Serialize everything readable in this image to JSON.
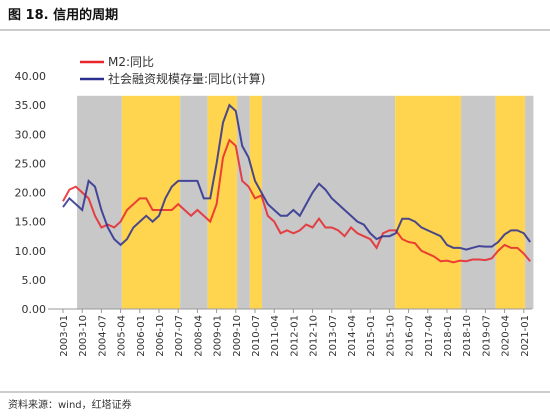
{
  "chart_data": {
    "type": "line",
    "title": "图 18. 信用的周期",
    "source": "资料来源：wind，红塔证券",
    "categories": [
      "2003-01",
      null,
      null,
      "2003-10",
      null,
      null,
      "2004-07",
      null,
      null,
      "2005-04",
      null,
      null,
      "2006-01",
      null,
      null,
      "2006-10",
      null,
      null,
      "2007-07",
      null,
      null,
      "2008-04",
      null,
      null,
      "2009-01",
      null,
      null,
      "2009-10",
      null,
      null,
      "2010-07",
      null,
      null,
      "2011-04",
      null,
      null,
      "2012-01",
      null,
      null,
      "2012-10",
      null,
      null,
      "2013-07",
      null,
      null,
      "2014-04",
      null,
      null,
      "2015-01",
      null,
      null,
      "2015-10",
      null,
      null,
      "2016-07",
      null,
      null,
      "2017-04",
      null,
      null,
      "2018-01",
      null,
      null,
      "2018-10",
      null,
      null,
      "2019-07",
      null,
      null,
      "2020-04",
      null,
      null,
      "2021-01",
      null
    ],
    "series": [
      {
        "name": "M2:同比",
        "color": "#e8262b",
        "values": [
          18.5,
          20.5,
          21,
          20,
          19,
          16,
          14,
          14.5,
          14,
          15,
          17,
          18,
          19,
          19,
          17,
          17,
          17,
          17,
          18,
          17,
          16,
          17,
          16,
          15,
          18,
          26,
          29,
          28,
          22,
          21,
          19,
          19.5,
          16,
          15,
          13,
          13.5,
          13,
          13.5,
          14.5,
          14,
          15.5,
          14,
          14,
          13.5,
          12.5,
          14,
          13,
          12.5,
          12,
          10.5,
          13,
          13.5,
          13.5,
          12,
          11.5,
          11.3,
          10,
          9.5,
          9,
          8.2,
          8.3,
          8,
          8.3,
          8.2,
          8.5,
          8.5,
          8.4,
          8.7,
          10,
          11,
          10.5,
          10.5,
          9.5,
          8.2
        ]
      },
      {
        "name": "社会融资规模存量:同比(计算)",
        "color": "#2b2f8f",
        "values": [
          17.5,
          19,
          18,
          17,
          22,
          21,
          17,
          14,
          12,
          11,
          12,
          14,
          15,
          16,
          15,
          16,
          19,
          21,
          22,
          22,
          22,
          22,
          19,
          19,
          25,
          32,
          35,
          34,
          28,
          26,
          22,
          20,
          18,
          17,
          16,
          16,
          17,
          16,
          18,
          20,
          21.5,
          20.5,
          19,
          18,
          17,
          16,
          15,
          14.5,
          13,
          12,
          12.5,
          12.5,
          13,
          15.5,
          15.5,
          15,
          14,
          13.5,
          13,
          12.5,
          11,
          10.5,
          10.5,
          10.2,
          10.5,
          10.8,
          10.7,
          10.7,
          11.5,
          12.8,
          13.5,
          13.5,
          13,
          11.5
        ]
      }
    ],
    "shaded": [
      {
        "start": 2.2,
        "end": 9.2,
        "color": "#c8c8c8"
      },
      {
        "start": 9.2,
        "end": 18.3,
        "color": "#ffd54f"
      },
      {
        "start": 18.3,
        "end": 22.6,
        "color": "#c8c8c8"
      },
      {
        "start": 22.6,
        "end": 27.2,
        "color": "#ffd54f"
      },
      {
        "start": 27.2,
        "end": 29.2,
        "color": "#c8c8c8"
      },
      {
        "start": 29.2,
        "end": 31.1,
        "color": "#ffd54f"
      },
      {
        "start": 31.1,
        "end": 51.9,
        "color": "#c8c8c8"
      },
      {
        "start": 51.9,
        "end": 62.2,
        "color": "#ffd54f"
      },
      {
        "start": 62.2,
        "end": 67.6,
        "color": "#c8c8c8"
      },
      {
        "start": 67.6,
        "end": 72.2,
        "color": "#ffd54f"
      },
      {
        "start": 72.2,
        "end": 73.5,
        "color": "#c8c8c8"
      }
    ],
    "ylim": [
      0,
      40
    ],
    "yticks": [
      {
        "value": 0,
        "label": "0.00"
      },
      {
        "value": 5,
        "label": "5.00"
      },
      {
        "value": 10,
        "label": "10.00"
      },
      {
        "value": 15,
        "label": "15.00"
      },
      {
        "value": 20,
        "label": "20.00"
      },
      {
        "value": 25,
        "label": "25.00"
      },
      {
        "value": 30,
        "label": "30.00"
      },
      {
        "value": 35,
        "label": "35.00"
      },
      {
        "value": 40,
        "label": "40.00"
      }
    ],
    "legend": "top-left"
  }
}
